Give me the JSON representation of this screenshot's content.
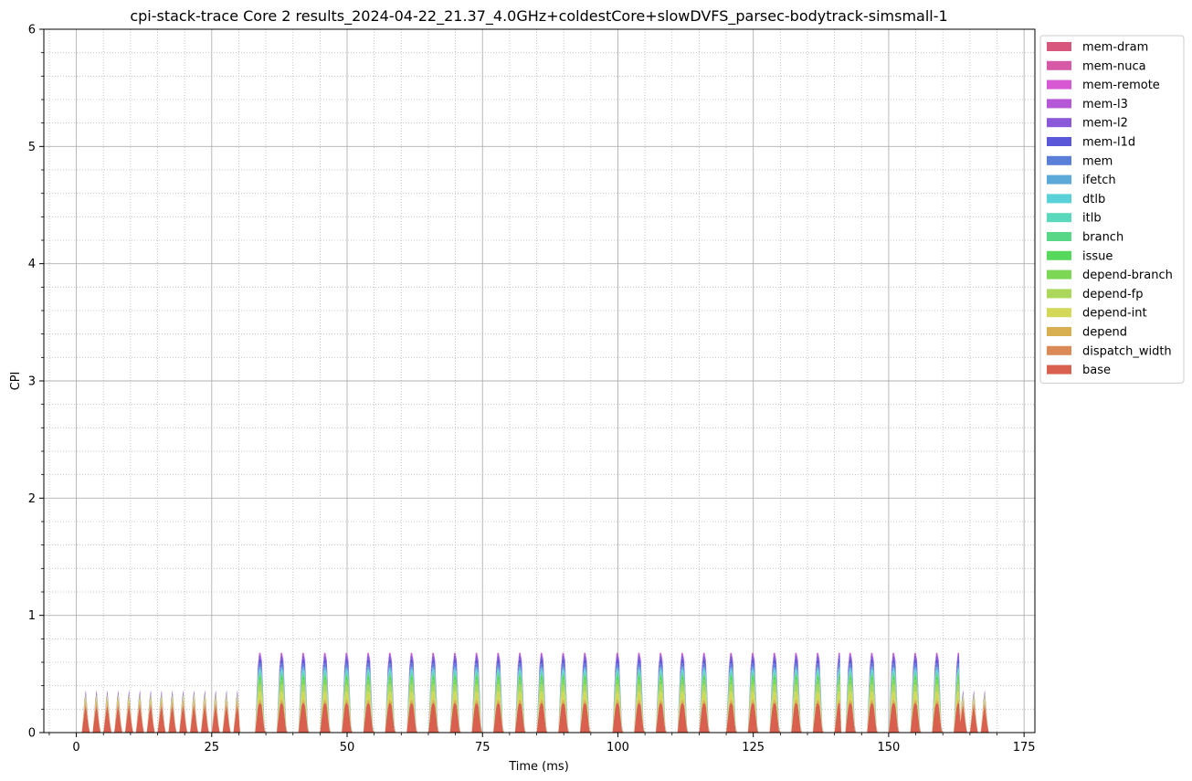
{
  "chart_data": {
    "type": "area",
    "title": "cpi-stack-trace Core 2 results_2024-04-22_21.37_4.0GHz+coldestCore+slowDVFS_parsec-bodytrack-simsmall-1",
    "xlabel": "Time (ms)",
    "ylabel": "CPI",
    "xlim": [
      -6,
      177
    ],
    "ylim": [
      0,
      6
    ],
    "x_ticks": [
      "0",
      "25",
      "50",
      "75",
      "100",
      "125",
      "150",
      "175"
    ],
    "y_ticks": [
      "0",
      "1",
      "2",
      "3",
      "4",
      "5",
      "6"
    ],
    "grid": true,
    "legend_position": "outside-top-right",
    "stacked": true,
    "series": [
      {
        "name": "base",
        "color": "#d9604f",
        "peak_values": [
          0.25,
          0.25
        ]
      },
      {
        "name": "dispatch_width",
        "color": "#db8a57",
        "peak_values": [
          0.02,
          0.0
        ]
      },
      {
        "name": "depend",
        "color": "#d8b052",
        "peak_values": [
          0.04,
          0.03
        ]
      },
      {
        "name": "depend-int",
        "color": "#d4d858",
        "peak_values": [
          0.03,
          0.07
        ]
      },
      {
        "name": "depend-fp",
        "color": "#abd85a",
        "peak_values": [
          0.02,
          0.06
        ]
      },
      {
        "name": "depend-branch",
        "color": "#7cd854",
        "peak_values": [
          0.0,
          0.04
        ]
      },
      {
        "name": "issue",
        "color": "#56d85a",
        "peak_values": [
          0.0,
          0.03
        ]
      },
      {
        "name": "branch",
        "color": "#58d886",
        "peak_values": [
          0.0,
          0.02
        ]
      },
      {
        "name": "itlb",
        "color": "#5ad8bb",
        "peak_values": [
          0.0,
          0.02
        ]
      },
      {
        "name": "dtlb",
        "color": "#59d1d8",
        "peak_values": [
          0.0,
          0.02
        ]
      },
      {
        "name": "ifetch",
        "color": "#5aa9d8",
        "peak_values": [
          0.0,
          0.02
        ]
      },
      {
        "name": "mem",
        "color": "#5a7fd8",
        "peak_values": [
          0.0,
          0.03
        ]
      },
      {
        "name": "mem-l1d",
        "color": "#5a58d8",
        "peak_values": [
          0.0,
          0.04
        ]
      },
      {
        "name": "mem-l2",
        "color": "#8a58d8",
        "peak_values": [
          0.03,
          0.03
        ]
      },
      {
        "name": "mem-l3",
        "color": "#b458d8",
        "peak_values": [
          0.0,
          0.01
        ]
      },
      {
        "name": "mem-remote",
        "color": "#d858d4",
        "peak_values": [
          0.0,
          0.01
        ]
      },
      {
        "name": "mem-nuca",
        "color": "#d858a8",
        "peak_values": [
          0.0,
          0.0
        ]
      },
      {
        "name": "mem-dram",
        "color": "#d8587d",
        "peak_values": [
          0.0,
          0.0
        ]
      }
    ],
    "segments": [
      {
        "x_start": 1,
        "x_end": 30,
        "period": 2.0,
        "profile": 0,
        "total_peak": 0.38
      },
      {
        "x_start": 33,
        "x_end": 75,
        "period": 4.0,
        "profile": 1,
        "total_peak": 0.6
      },
      {
        "x_start": 77,
        "x_end": 97,
        "period": 4.0,
        "profile": 1,
        "total_peak": 0.6
      },
      {
        "x_start": 99,
        "x_end": 118,
        "period": 4.0,
        "profile": 1,
        "total_peak": 0.6
      },
      {
        "x_start": 120,
        "x_end": 141,
        "period": 4.0,
        "profile": 1,
        "total_peak": 0.59
      },
      {
        "x_start": 142,
        "x_end": 163,
        "period": 4.0,
        "profile": 1,
        "total_peak": 0.6
      },
      {
        "x_start": 163,
        "x_end": 169,
        "period": 2.0,
        "profile": 0,
        "total_peak": 0.38
      }
    ]
  }
}
